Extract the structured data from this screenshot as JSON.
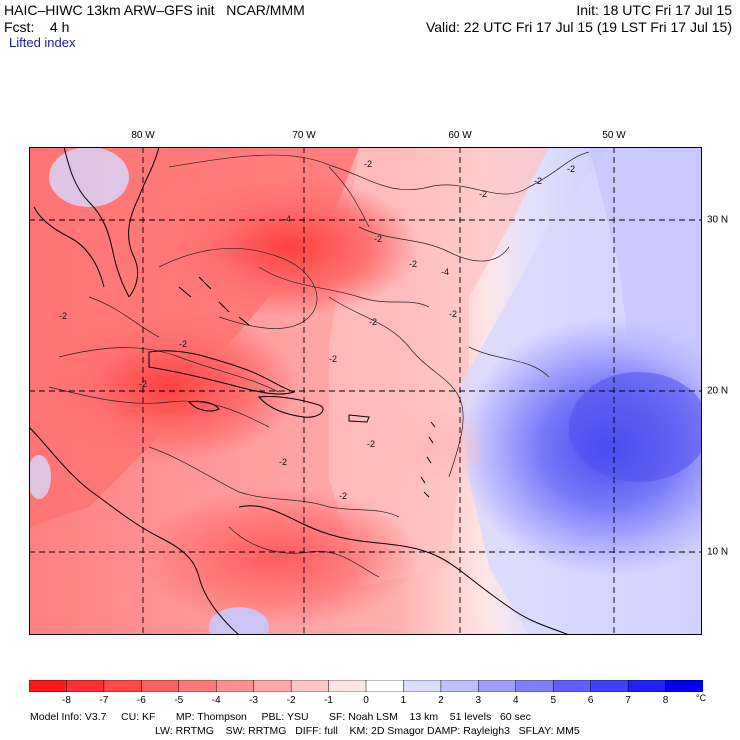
{
  "header": {
    "model": "HAIC–HIWC 13km ARW–GFS init   NCAR/MMM",
    "init": "Init: 18 UTC Fri 17 Jul 15",
    "fcst": "Fcst:    4 h",
    "valid": "Valid: 22 UTC Fri 17 Jul 15 (19 LST Fri 17 Jul 15)",
    "field": "Lifted index"
  },
  "lon_labels": [
    "80 W",
    "70 W",
    "60 W",
    "50 W"
  ],
  "lat_labels": [
    "30 N",
    "20 N",
    "10 N"
  ],
  "contour_labels": [
    "-2",
    "-2",
    "-2",
    "-2",
    "-2",
    "-2",
    "-2",
    "-2",
    "-2",
    "-4",
    "-4",
    "-2",
    "-2",
    "-2",
    "-2",
    "-2",
    "-2"
  ],
  "colorbar": {
    "unit": "°C",
    "ticks": [
      "-8",
      "-7",
      "-6",
      "-5",
      "-4",
      "-3",
      "-2",
      "-1",
      "0",
      "1",
      "2",
      "3",
      "4",
      "5",
      "6",
      "7",
      "8"
    ],
    "colors": [
      "#ff1a1a",
      "#ff3030",
      "#ff4848",
      "#ff6060",
      "#ff7878",
      "#ff9090",
      "#ffa8a8",
      "#ffc4c4",
      "#ffe4e4",
      "#ffffff",
      "#dcdcff",
      "#c0c0ff",
      "#a0a0ff",
      "#8080ff",
      "#6060ff",
      "#4040ff",
      "#2020ff",
      "#0000ee"
    ]
  },
  "footer": {
    "line1": "Model Info: V3.7     CU: KF       MP: Thompson     PBL: YSU       SF: Noah LSM    13 km    51 levels   60 sec",
    "line2": "LW: RRTMG    SW: RRTMG   DIFF: full    KM: 2D Smagor DAMP: Rayleigh3   SFLAY: MM5"
  }
}
